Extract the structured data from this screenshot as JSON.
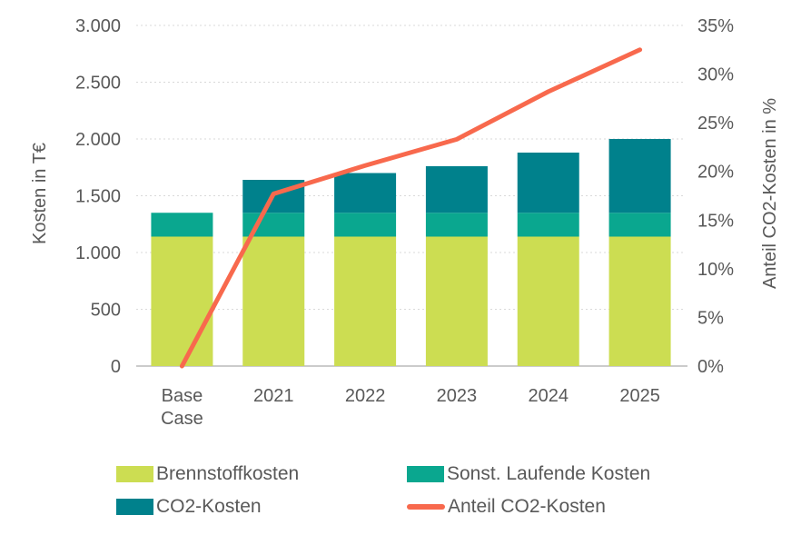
{
  "chart_data": {
    "type": "combo-stacked-bar-line",
    "categories": [
      "Base Case",
      "2021",
      "2022",
      "2023",
      "2024",
      "2025"
    ],
    "bar_series": [
      {
        "name": "Brennstoffkosten",
        "color": "#CCDD52",
        "values": [
          1140,
          1140,
          1140,
          1140,
          1140,
          1140
        ]
      },
      {
        "name": "Sonst. Laufende Kosten",
        "color": "#0AA78F",
        "values": [
          210,
          210,
          210,
          210,
          210,
          210
        ]
      },
      {
        "name": "CO2-Kosten",
        "color": "#00818C",
        "values": [
          0,
          290,
          350,
          410,
          530,
          650
        ]
      }
    ],
    "line_series": {
      "name": "Anteil CO2-Kosten",
      "color": "#F8694D",
      "values": [
        0,
        17.7,
        20.6,
        23.3,
        28.2,
        32.5
      ]
    },
    "left_axis": {
      "title": "Kosten in T€",
      "min": 0,
      "max": 3000,
      "tick_labels": [
        "0",
        "500",
        "1.000",
        "1.500",
        "2.000",
        "2.500",
        "3.000"
      ]
    },
    "right_axis": {
      "title": "Anteil CO2-Kosten in %",
      "min": 0,
      "max": 35,
      "tick_labels": [
        "0%",
        "5%",
        "10%",
        "15%",
        "20%",
        "25%",
        "30%",
        "35%"
      ]
    },
    "grid": {
      "horizontal": true,
      "style": "dotted"
    },
    "legend_position": "bottom"
  },
  "legend": {
    "items": [
      {
        "label": "Brennstoffkosten",
        "marker": "rect",
        "color": "#CCDD52"
      },
      {
        "label": "Sonst. Laufende Kosten",
        "marker": "rect",
        "color": "#0AA78F"
      },
      {
        "label": "CO2-Kosten",
        "marker": "rect",
        "color": "#00818C"
      },
      {
        "label": "Anteil CO2-Kosten",
        "marker": "line",
        "color": "#F8694D"
      }
    ]
  },
  "colors": {
    "text": "#595959",
    "gridline": "#D9D9D9",
    "axis_line": "#CBCBCB",
    "background": "#FFFFFF"
  }
}
